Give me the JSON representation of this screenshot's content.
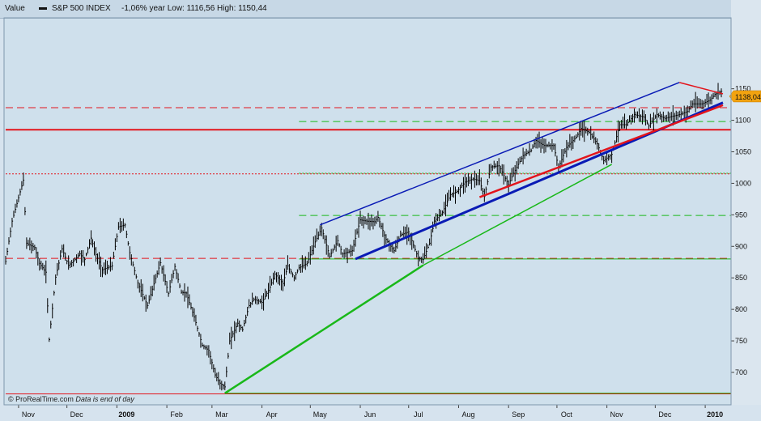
{
  "header": {
    "value_label": "Value",
    "instrument": "S&P 500 INDEX",
    "stats": "-1,06%  year Low: 1116,56  High: 1150,44"
  },
  "footer": {
    "brand": "© ProRealTime.com",
    "note": "Data is end of day"
  },
  "current_price_badge": "1138,04",
  "colors": {
    "background": "#cfe0ec",
    "price_bars": "#000000",
    "channel_blue": "#0a1bb5",
    "trend_red": "#e3141b",
    "trend_green": "#19b819",
    "badge": "#f2a310"
  },
  "chart_data": {
    "type": "ohlc",
    "title": "S&P 500 INDEX",
    "y_ticks": [
      "1150",
      "1100",
      "1050",
      "1000",
      "950",
      "900",
      "850",
      "800",
      "750",
      "700"
    ],
    "y_tick_values": [
      1150,
      1100,
      1050,
      1000,
      950,
      900,
      850,
      800,
      750,
      700
    ],
    "x_ticks": [
      "Nov",
      "Dec",
      "2009",
      "Feb",
      "Mar",
      "Apr",
      "May",
      "Jun",
      "Jul",
      "Aug",
      "Sep",
      "Oct",
      "Nov",
      "Dec",
      "2010"
    ],
    "x_tick_dates": [
      "2008-11-01",
      "2008-12-01",
      "2009-01-01",
      "2009-02-01",
      "2009-03-01",
      "2009-04-01",
      "2009-05-01",
      "2009-06-01",
      "2009-07-01",
      "2009-08-01",
      "2009-09-01",
      "2009-10-01",
      "2009-11-01",
      "2009-12-01",
      "2010-01-01"
    ],
    "ylim": [
      650,
      1160
    ],
    "xlim": [
      "2008-10-24",
      "2010-01-12"
    ],
    "series_closes": [
      [
        "2008-10-24",
        876
      ],
      [
        "2008-10-28",
        940
      ],
      [
        "2008-10-31",
        968
      ],
      [
        "2008-11-04",
        1005
      ],
      [
        "2008-11-06",
        905
      ],
      [
        "2008-11-11",
        898
      ],
      [
        "2008-11-14",
        873
      ],
      [
        "2008-11-18",
        859
      ],
      [
        "2008-11-20",
        752
      ],
      [
        "2008-11-24",
        851
      ],
      [
        "2008-11-28",
        896
      ],
      [
        "2008-12-02",
        870
      ],
      [
        "2008-12-05",
        876
      ],
      [
        "2008-12-09",
        888
      ],
      [
        "2008-12-12",
        879
      ],
      [
        "2008-12-16",
        913
      ],
      [
        "2008-12-19",
        887
      ],
      [
        "2008-12-23",
        863
      ],
      [
        "2008-12-29",
        869
      ],
      [
        "2009-01-02",
        931
      ],
      [
        "2009-01-06",
        934
      ],
      [
        "2009-01-09",
        890
      ],
      [
        "2009-01-14",
        842
      ],
      [
        "2009-01-20",
        806
      ],
      [
        "2009-01-23",
        832
      ],
      [
        "2009-01-28",
        874
      ],
      [
        "2009-02-02",
        825
      ],
      [
        "2009-02-06",
        868
      ],
      [
        "2009-02-10",
        827
      ],
      [
        "2009-02-13",
        826
      ],
      [
        "2009-02-18",
        788
      ],
      [
        "2009-02-23",
        743
      ],
      [
        "2009-02-27",
        735
      ],
      [
        "2009-03-03",
        696
      ],
      [
        "2009-03-06",
        683
      ],
      [
        "2009-03-09",
        677
      ],
      [
        "2009-03-12",
        750
      ],
      [
        "2009-03-17",
        778
      ],
      [
        "2009-03-20",
        768
      ],
      [
        "2009-03-24",
        806
      ],
      [
        "2009-03-27",
        816
      ],
      [
        "2009-04-01",
        811
      ],
      [
        "2009-04-06",
        835
      ],
      [
        "2009-04-09",
        856
      ],
      [
        "2009-04-14",
        841
      ],
      [
        "2009-04-17",
        869
      ],
      [
        "2009-04-21",
        850
      ],
      [
        "2009-04-24",
        866
      ],
      [
        "2009-04-29",
        873
      ],
      [
        "2009-05-04",
        907
      ],
      [
        "2009-05-08",
        929
      ],
      [
        "2009-05-13",
        884
      ],
      [
        "2009-05-18",
        909
      ],
      [
        "2009-05-21",
        888
      ],
      [
        "2009-05-27",
        893
      ],
      [
        "2009-06-01",
        942
      ],
      [
        "2009-06-05",
        940
      ],
      [
        "2009-06-10",
        939
      ],
      [
        "2009-06-12",
        946
      ],
      [
        "2009-06-17",
        911
      ],
      [
        "2009-06-22",
        893
      ],
      [
        "2009-06-26",
        918
      ],
      [
        "2009-07-01",
        923
      ],
      [
        "2009-07-07",
        881
      ],
      [
        "2009-07-10",
        879
      ],
      [
        "2009-07-14",
        905
      ],
      [
        "2009-07-17",
        940
      ],
      [
        "2009-07-22",
        954
      ],
      [
        "2009-07-27",
        982
      ],
      [
        "2009-07-31",
        987
      ],
      [
        "2009-08-05",
        1002
      ],
      [
        "2009-08-10",
        1007
      ],
      [
        "2009-08-14",
        1004
      ],
      [
        "2009-08-17",
        979
      ],
      [
        "2009-08-21",
        1026
      ],
      [
        "2009-08-26",
        1028
      ],
      [
        "2009-09-01",
        998
      ],
      [
        "2009-09-04",
        1016
      ],
      [
        "2009-09-10",
        1044
      ],
      [
        "2009-09-15",
        1052
      ],
      [
        "2009-09-18",
        1068
      ],
      [
        "2009-09-23",
        1060
      ],
      [
        "2009-09-29",
        1060
      ],
      [
        "2009-10-02",
        1025
      ],
      [
        "2009-10-07",
        1057
      ],
      [
        "2009-10-13",
        1073
      ],
      [
        "2009-10-16",
        1087
      ],
      [
        "2009-10-21",
        1081
      ],
      [
        "2009-10-26",
        1063
      ],
      [
        "2009-10-30",
        1036
      ],
      [
        "2009-11-04",
        1046
      ],
      [
        "2009-11-09",
        1093
      ],
      [
        "2009-11-13",
        1093
      ],
      [
        "2009-11-18",
        1109
      ],
      [
        "2009-11-24",
        1105
      ],
      [
        "2009-11-27",
        1091
      ],
      [
        "2009-12-02",
        1109
      ],
      [
        "2009-12-07",
        1103
      ],
      [
        "2009-12-11",
        1106
      ],
      [
        "2009-12-16",
        1109
      ],
      [
        "2009-12-21",
        1114
      ],
      [
        "2009-12-24",
        1126
      ],
      [
        "2009-12-30",
        1126
      ],
      [
        "2010-01-04",
        1132
      ],
      [
        "2010-01-07",
        1141
      ],
      [
        "2010-01-11",
        1146
      ],
      [
        "2010-01-12",
        1138
      ]
    ],
    "trend_lines": [
      {
        "name": "channel-upper",
        "color": "#0a1bb5",
        "width": 1.5,
        "from": [
          "2009-05-07",
          934
        ],
        "to": [
          "2009-12-16",
          1160
        ]
      },
      {
        "name": "channel-lower",
        "color": "#0a1bb5",
        "width": 3,
        "from": [
          "2009-05-29",
          880
        ],
        "to": [
          "2010-01-12",
          1128
        ]
      },
      {
        "name": "red-support",
        "color": "#e3141b",
        "width": 2.5,
        "from": [
          "2009-08-14",
          978
        ],
        "to": [
          "2010-01-12",
          1124
        ]
      },
      {
        "name": "red-top",
        "color": "#e3141b",
        "width": 1.5,
        "from": [
          "2009-12-16",
          1160
        ],
        "to": [
          "2010-01-12",
          1142
        ]
      },
      {
        "name": "green-support",
        "color": "#19b819",
        "width": 2.5,
        "from": [
          "2009-03-09",
          667
        ],
        "to": [
          "2009-07-10",
          870
        ]
      },
      {
        "name": "green-upper",
        "color": "#19b819",
        "width": 1.5,
        "from": [
          "2009-07-10",
          870
        ],
        "to": [
          "2009-11-04",
          1030
        ]
      }
    ],
    "horizontal_levels": [
      {
        "name": "level-1120",
        "value": 1120,
        "color": "#e3141b",
        "style": "dashed",
        "from": "2008-10-24"
      },
      {
        "name": "level-1085",
        "value": 1085,
        "color": "#e3141b",
        "style": "solid",
        "from": "2008-10-24"
      },
      {
        "name": "level-1098",
        "value": 1098,
        "color": "#19b819",
        "style": "dashed",
        "from": "2009-04-24"
      },
      {
        "name": "level-1015-red",
        "value": 1015,
        "color": "#e3141b",
        "style": "dotted",
        "from": "2008-10-24"
      },
      {
        "name": "level-1015-green",
        "value": 1016,
        "color": "#19b819",
        "style": "dotted",
        "from": "2009-04-24"
      },
      {
        "name": "level-949",
        "value": 949,
        "color": "#19b819",
        "style": "dashed",
        "from": "2009-04-24"
      },
      {
        "name": "level-881-red",
        "value": 881,
        "color": "#e3141b",
        "style": "dashed",
        "from": "2008-10-24"
      },
      {
        "name": "level-881-green",
        "value": 880,
        "color": "#19b819",
        "style": "solid",
        "from": "2009-04-24"
      },
      {
        "name": "level-666",
        "value": 666,
        "color": "#e3141b",
        "style": "solid",
        "from": "2008-10-24"
      },
      {
        "name": "level-667",
        "value": 667,
        "color": "#19b819",
        "style": "solid",
        "from": "2009-03-09"
      }
    ],
    "last_value": 1138.04
  }
}
